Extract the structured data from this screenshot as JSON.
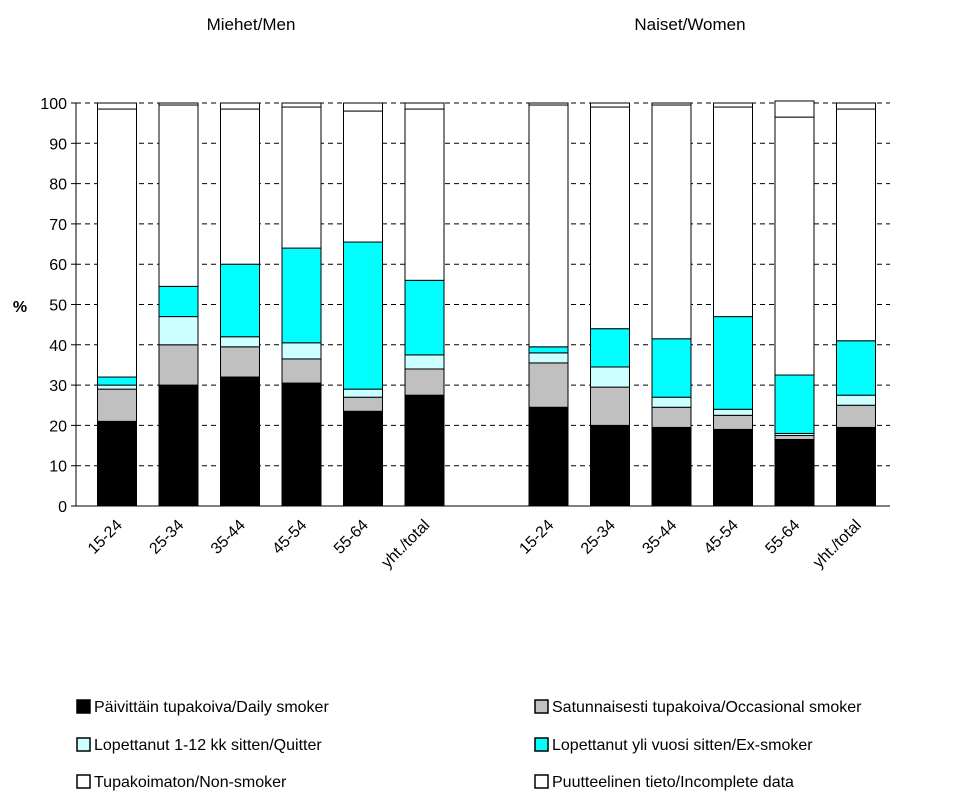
{
  "chart_data": {
    "type": "bar",
    "stacked": true,
    "ylabel": "%",
    "ylim": [
      0,
      100
    ],
    "yticks": [
      0,
      10,
      20,
      30,
      40,
      50,
      60,
      70,
      80,
      90,
      100
    ],
    "grid": "horizontal dashed",
    "legend_position": "bottom",
    "groups": [
      {
        "title": "Miehet/Men",
        "categories": [
          "15-24",
          "25-34",
          "35-44",
          "45-54",
          "55-64",
          "yht./total"
        ]
      },
      {
        "title": "Naiset/Women",
        "categories": [
          "15-24",
          "25-34",
          "35-44",
          "45-54",
          "55-64",
          "yht./total"
        ]
      }
    ],
    "series": [
      {
        "name": "Päivittäin tupakoiva/Daily smoker",
        "color": "#000000",
        "values": [
          21,
          30,
          32,
          30.5,
          23.5,
          27.5,
          24.5,
          20,
          19.5,
          19,
          16.5,
          19.5
        ]
      },
      {
        "name": "Satunnaisesti tupakoiva/Occasional smoker",
        "color": "#c0c0c0",
        "values": [
          8,
          10,
          7.5,
          6,
          3.5,
          6.5,
          11,
          9.5,
          5,
          3.5,
          1,
          5.5
        ]
      },
      {
        "name": "Lopettanut 1-12 kk sitten/Quitter",
        "color": "#ccffff",
        "values": [
          1,
          7,
          2.5,
          4,
          2,
          3.5,
          2.5,
          5,
          2.5,
          1.5,
          0.5,
          2.5
        ]
      },
      {
        "name": "Lopettanut yli vuosi sitten/Ex-smoker",
        "color": "#00ffff",
        "values": [
          2,
          7.5,
          18,
          23.5,
          36.5,
          18.5,
          1.5,
          9.5,
          14.5,
          23,
          14.5,
          13.5
        ]
      },
      {
        "name": "Tupakoimaton/Non-smoker",
        "color": "#ffffff",
        "values": [
          66.5,
          45,
          38.5,
          35,
          32.5,
          42.5,
          60,
          55,
          58,
          52,
          64,
          57.5
        ]
      },
      {
        "name": "Puutteelinen tieto/Incomplete data",
        "color": "#ffffff",
        "values": [
          1.5,
          0.5,
          1.5,
          1,
          2,
          1.5,
          0.5,
          1,
          0.5,
          1,
          4,
          1.5
        ]
      }
    ]
  }
}
